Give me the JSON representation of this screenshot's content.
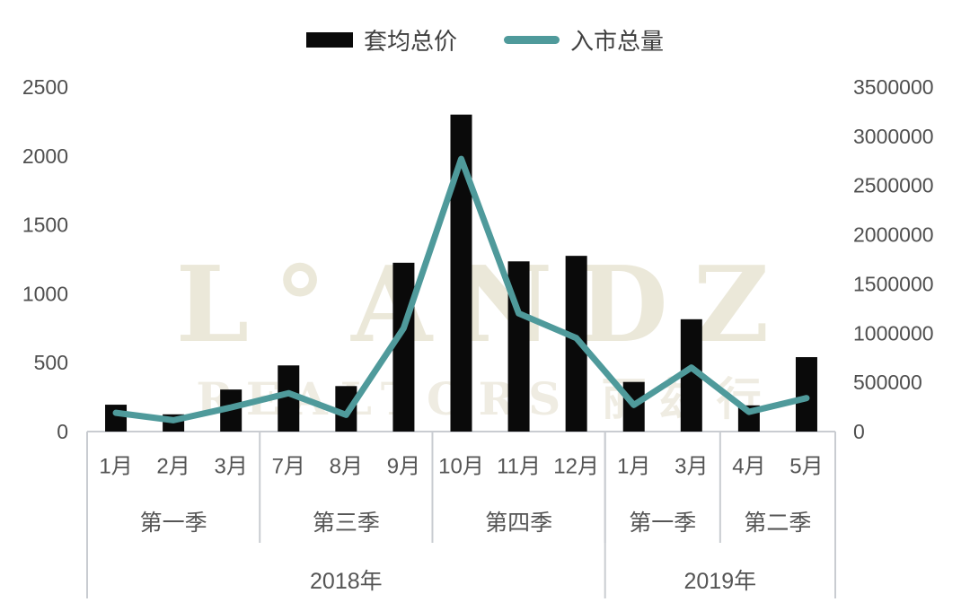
{
  "legend": {
    "bar_label": "套均总价",
    "line_label": "入市总量"
  },
  "watermark": {
    "line1": "L°ANDZ",
    "line2": "REALTORS 丽兹行"
  },
  "colors": {
    "bar": "#0a0a0a",
    "line": "#4f9a9b",
    "axis_text": "#4f4f4f",
    "category_text": "#555555",
    "grid_line": "#c9ccd1",
    "watermark1": "#ebe8d9",
    "watermark2": "#efece2"
  },
  "chart_data": {
    "type": "bar",
    "subtype": "dual-axis bar + line combo",
    "categories": [
      "1月",
      "2月",
      "3月",
      "7月",
      "8月",
      "9月",
      "10月",
      "11月",
      "12月",
      "1月",
      "3月",
      "4月",
      "5月"
    ],
    "series": [
      {
        "name": "套均总价",
        "type": "bar",
        "axis": "left",
        "color": "#0a0a0a",
        "values": [
          195,
          125,
          305,
          480,
          330,
          1225,
          2300,
          1235,
          1275,
          360,
          815,
          190,
          540
        ]
      },
      {
        "name": "入市总量",
        "type": "line",
        "axis": "right",
        "color": "#4f9a9b",
        "values": [
          190000,
          115000,
          245000,
          390000,
          170000,
          1050000,
          2770000,
          1200000,
          950000,
          270000,
          650000,
          200000,
          340000
        ]
      }
    ],
    "quarter_groups": [
      {
        "label": "第一季",
        "months": 3
      },
      {
        "label": "第三季",
        "months": 3
      },
      {
        "label": "第四季",
        "months": 3
      },
      {
        "label": "第一季",
        "months": 2
      },
      {
        "label": "第二季",
        "months": 2
      }
    ],
    "year_groups": [
      {
        "label": "2018年",
        "months": 9
      },
      {
        "label": "2019年",
        "months": 4
      }
    ],
    "left_axis": {
      "min": 0,
      "max": 2500,
      "ticks": [
        0,
        500,
        1000,
        1500,
        2000,
        2500
      ]
    },
    "right_axis": {
      "min": 0,
      "max": 3500000,
      "ticks": [
        0,
        500000,
        1000000,
        1500000,
        2000000,
        2500000,
        3000000,
        3500000
      ]
    },
    "title": "",
    "xlabel": "",
    "ylabel_left": "",
    "ylabel_right": "",
    "grid": false,
    "legend_position": "top"
  }
}
